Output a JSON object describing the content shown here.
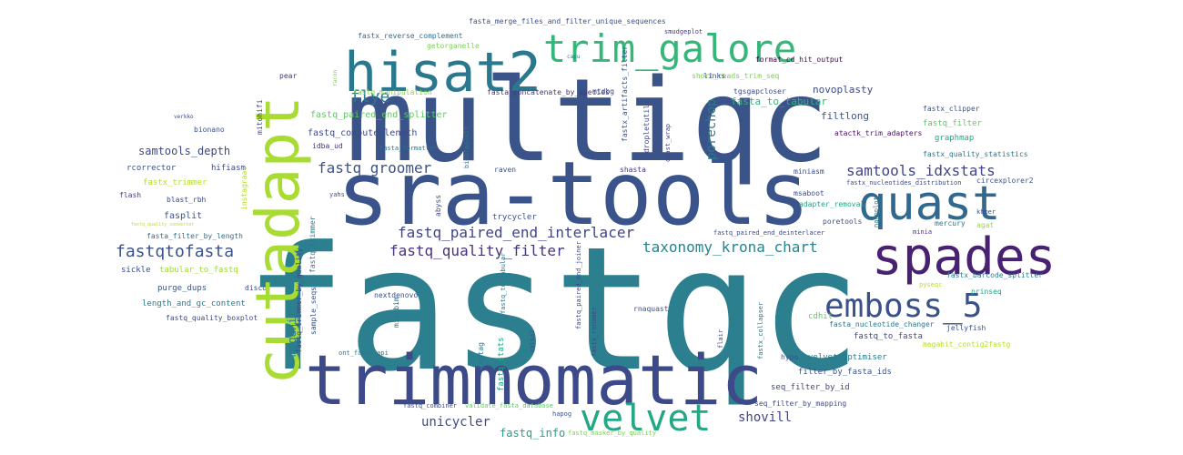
{
  "words": [
    {
      "text": "fastqc",
      "color": "#2c7f8e"
    },
    {
      "text": "multiqc",
      "color": "#3a5388"
    },
    {
      "text": "sra-tools",
      "color": "#3a548b"
    },
    {
      "text": "cutadapt",
      "color": "#a9dc33"
    },
    {
      "text": "trimmomatic",
      "color": "#3d4a89"
    },
    {
      "text": "hisat2",
      "color": "#2a788e"
    },
    {
      "text": "trim_galore",
      "color": "#35b779"
    },
    {
      "text": "spades",
      "color": "#482173"
    },
    {
      "text": "quast",
      "color": "#31688e"
    },
    {
      "text": "velvet",
      "color": "#22a884"
    },
    {
      "text": "emboss_5",
      "color": "#3b518b"
    },
    {
      "text": "samtools_idxstats",
      "color": "#414487"
    },
    {
      "text": "fastq_quality_filter",
      "color": "#46337e"
    },
    {
      "text": "fastq_paired_end_interlacer",
      "color": "#414487"
    },
    {
      "text": "fastqtofasta",
      "color": "#3b528b"
    },
    {
      "text": "taxonomy_krona_chart",
      "color": "#25858e"
    },
    {
      "text": "fastq_groomer",
      "color": "#3b528b"
    },
    {
      "text": "unicycler",
      "color": "#3e4a89"
    },
    {
      "text": "flye",
      "color": "#2a788e"
    },
    {
      "text": "porechop",
      "color": "#2a788e"
    },
    {
      "text": "shovill",
      "color": "#414487"
    },
    {
      "text": "fastq_info",
      "color": "#20a486"
    },
    {
      "text": "fasta_to_tabular",
      "color": "#2fb47c"
    },
    {
      "text": "filtlong",
      "color": "#39558c"
    },
    {
      "text": "novoplasty",
      "color": "#3e4a89"
    },
    {
      "text": "megahit",
      "color": "#2a788e"
    },
    {
      "text": "samtools_depth",
      "color": "#3e4989"
    },
    {
      "text": "fastq_compute_length",
      "color": "#3e4a89"
    },
    {
      "text": "fastq_paired_end_splitter",
      "color": "#5ec962"
    },
    {
      "text": "fastq_manipulation",
      "color": "#84d44b"
    },
    {
      "text": "fasta_concatenate_by_species",
      "color": "#46337e"
    },
    {
      "text": "short_reads_trim_seq",
      "color": "#7ad151"
    },
    {
      "text": "fastx_reverse_complement",
      "color": "#2d708e"
    },
    {
      "text": "fasta_merge_files_and_filter_unique_sequences",
      "color": "#3b528b"
    },
    {
      "text": "smudgeplot",
      "color": "#443983"
    },
    {
      "text": "getorganelle",
      "color": "#7ad151"
    },
    {
      "text": "format_cd_hit_output",
      "color": "#440154"
    },
    {
      "text": "pear",
      "color": "#46337e"
    },
    {
      "text": "mtdbg",
      "color": "#3e4989"
    },
    {
      "text": "links",
      "color": "#3b528b"
    },
    {
      "text": "tgsgapcloser",
      "color": "#3e4a89"
    },
    {
      "text": "fastx_clipper",
      "color": "#3b528b"
    },
    {
      "text": "fastq_filter",
      "color": "#5ec962"
    },
    {
      "text": "graphmap",
      "color": "#22a884"
    },
    {
      "text": "atactk_trim_adapters",
      "color": "#481467"
    },
    {
      "text": "fastx_quality_statistics",
      "color": "#2a788e"
    },
    {
      "text": "fastx_nucleotides_distribution",
      "color": "#3e4a89"
    },
    {
      "text": "circexplorer2",
      "color": "#3b528b"
    },
    {
      "text": "hifiasm",
      "color": "#3e4a89"
    },
    {
      "text": "idba_ud",
      "color": "#46337e"
    },
    {
      "text": "fasta_formatter",
      "color": "#2c728e"
    },
    {
      "text": "miniasm",
      "color": "#3e4a89"
    },
    {
      "text": "raven",
      "color": "#3b528b"
    },
    {
      "text": "shasta",
      "color": "#443983"
    },
    {
      "text": "fastx_trimmer",
      "color": "#b5de2b"
    },
    {
      "text": "rcorrector",
      "color": "#3b528b"
    },
    {
      "text": "flash",
      "color": "#433e85"
    },
    {
      "text": "blast_rbh",
      "color": "#3e4989"
    },
    {
      "text": "fasplit",
      "color": "#3b528b"
    },
    {
      "text": "fasta_filter_by_length",
      "color": "#2d708e"
    },
    {
      "text": "sickle",
      "color": "#3e4a89"
    },
    {
      "text": "tabular_to_fastq",
      "color": "#a0da39"
    },
    {
      "text": "purge_dups",
      "color": "#3b528b"
    },
    {
      "text": "length_and_gc_content",
      "color": "#2a788e"
    },
    {
      "text": "fastq_quality_boxplot",
      "color": "#3e4a89"
    },
    {
      "text": "disco",
      "color": "#3e4989"
    },
    {
      "text": "nextdenovo",
      "color": "#3b528b"
    },
    {
      "text": "mitobim",
      "color": "#2a788e"
    },
    {
      "text": "trycycler",
      "color": "#3b528b"
    },
    {
      "text": "abyss",
      "color": "#3e4a89"
    },
    {
      "text": "ragtag",
      "color": "#2a788e"
    },
    {
      "text": "fastq_stats",
      "color": "#22a884"
    },
    {
      "text": "ont_fast5_api",
      "color": "#2a788e"
    },
    {
      "text": "salsa2",
      "color": "#3b528b"
    },
    {
      "text": "rnaquast",
      "color": "#3b528b"
    },
    {
      "text": "fastq_paired_end_deinterlacer",
      "color": "#3e4a89"
    },
    {
      "text": "msaboot",
      "color": "#3e4a89"
    },
    {
      "text": "adapter_removal",
      "color": "#20a486"
    },
    {
      "text": "minia",
      "color": "#443983"
    },
    {
      "text": "khmer",
      "color": "#3b528b"
    },
    {
      "text": "agat",
      "color": "#a0da39"
    },
    {
      "text": "mercury",
      "color": "#2a788e"
    },
    {
      "text": "poretools",
      "color": "#3b528b"
    },
    {
      "text": "fastx_barcode_splitter",
      "color": "#2a788e"
    },
    {
      "text": "prinseq",
      "color": "#20a486"
    },
    {
      "text": "pyseqc",
      "color": "#b5de2b"
    },
    {
      "text": "cdhit",
      "color": "#5ec962"
    },
    {
      "text": "fasta_nucleotide_changer",
      "color": "#2a788e"
    },
    {
      "text": "jellyfish",
      "color": "#3b528b"
    },
    {
      "text": "megahit_contig2fastg",
      "color": "#b5de2b"
    },
    {
      "text": "fastq_to_fasta",
      "color": "#3e4989"
    },
    {
      "text": "velvet_optimiser",
      "color": "#2a788e"
    },
    {
      "text": "filter_by_fasta_ids",
      "color": "#3b528b"
    },
    {
      "text": "seq_filter_by_id",
      "color": "#3e4989"
    },
    {
      "text": "seq_filter_by_mapping",
      "color": "#3e4a89"
    },
    {
      "text": "hypo",
      "color": "#3b528b"
    },
    {
      "text": "flair",
      "color": "#3b528b"
    },
    {
      "text": "fastq_combiner",
      "color": "#3e4a89"
    },
    {
      "text": "validate_fasta_database",
      "color": "#5ec962"
    },
    {
      "text": "hapog",
      "color": "#3b528b"
    },
    {
      "text": "fastq_masker_by_quality",
      "color": "#7ad151"
    },
    {
      "text": "bionano",
      "color": "#3b528b"
    },
    {
      "text": "verkko",
      "color": "#3e4989"
    },
    {
      "text": "fastq_quality_converter",
      "color": "#b5de2b"
    },
    {
      "text": "mitohifi",
      "color": "#3e4a89"
    },
    {
      "text": "instagraal",
      "color": "#b5de2b"
    },
    {
      "text": "fastq_trimmer_by_quality",
      "color": "#3e4a89"
    },
    {
      "text": "fastq_trimmer",
      "color": "#2a788e"
    },
    {
      "text": "sample_seqs",
      "color": "#3b528b"
    },
    {
      "text": "lighter",
      "color": "#3b528b"
    },
    {
      "text": "yahs",
      "color": "#2a788e"
    },
    {
      "text": "biobtoolkit",
      "color": "#2a788e"
    },
    {
      "text": "fastq_to_tabular",
      "color": "#3e4a89"
    },
    {
      "text": "fastx_renamer",
      "color": "#3e4989"
    },
    {
      "text": "fastq_paired_end_joiner",
      "color": "#2a788e"
    },
    {
      "text": "fastx_collapser",
      "color": "#3b528b"
    },
    {
      "text": "fastx_artifacts_filter",
      "color": "#3e4a89"
    },
    {
      "text": "dropletutils",
      "color": "#3e4989"
    },
    {
      "text": "quast_wrap",
      "color": "#7ad151"
    },
    {
      "text": "racon",
      "color": "#2a788e"
    },
    {
      "text": "capu",
      "color": "#2a788e"
    },
    {
      "text": "nanoplot",
      "color": "#b5de2b"
    }
  ]
}
